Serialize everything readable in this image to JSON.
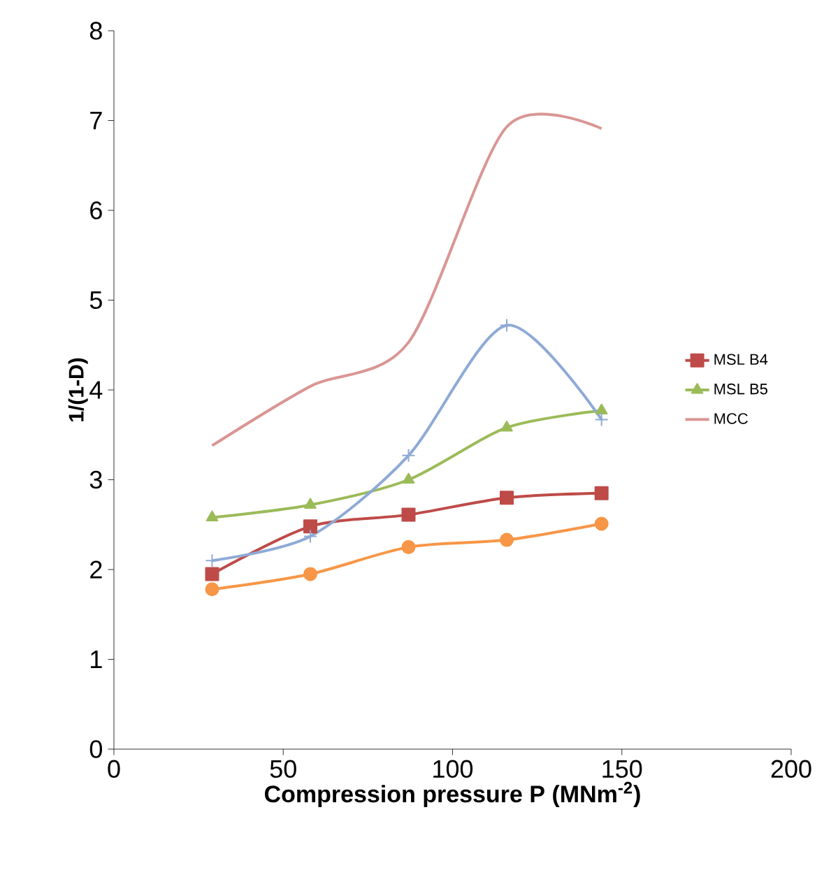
{
  "chart_data": {
    "type": "line",
    "xlabel": "Compression pressure P (MNm$^{-2}$)",
    "ylabel": "1/(1-D)",
    "x": [
      29,
      58,
      87,
      116,
      144
    ],
    "xlim": [
      0,
      200
    ],
    "xticks": [
      0,
      50,
      100,
      150,
      200
    ],
    "ylim": [
      0,
      8
    ],
    "yticks": [
      0,
      1,
      2,
      3,
      4,
      5,
      6,
      7,
      8
    ],
    "grid": false,
    "legend": "right",
    "series": [
      {
        "name": "MSL B4",
        "color": "#be4b48",
        "marker": "square",
        "values": [
          1.95,
          2.48,
          2.61,
          2.8,
          2.85
        ]
      },
      {
        "name": "MSL B5",
        "color": "#9bbb59",
        "marker": "triangle",
        "values": [
          2.58,
          2.72,
          3.0,
          3.58,
          3.77
        ]
      },
      {
        "color": "#f79646",
        "marker": "circle",
        "values": [
          1.78,
          1.95,
          2.25,
          2.33,
          2.51
        ]
      },
      {
        "color": "#8eaad6",
        "marker": "cross",
        "values": [
          2.1,
          2.37,
          3.27,
          4.72,
          3.67
        ]
      },
      {
        "name": "MCC",
        "color": "#d99694",
        "marker": "none",
        "values": [
          3.38,
          4.04,
          4.53,
          6.93,
          6.91
        ]
      }
    ]
  }
}
